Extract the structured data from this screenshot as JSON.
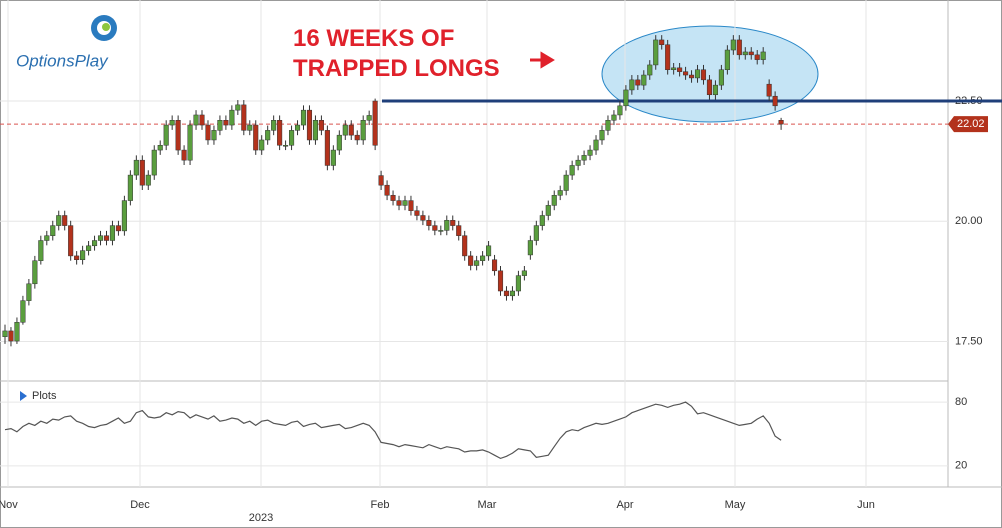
{
  "logo": "OptionsPlay",
  "chart_data": [
    {
      "type": "candlestick",
      "annotation": "16 WEEKS OF TRAPPED LONGS",
      "up_color": "#5a9e3e",
      "down_color": "#b3321c",
      "ylim": [
        16.7,
        24.6
      ],
      "yticks": [
        {
          "value": 17.5,
          "label": "17.50"
        },
        {
          "value": 20,
          "label": "20.00"
        },
        {
          "value": 22.5,
          "label": "22.50"
        }
      ],
      "grid": true,
      "resistance": 22.5,
      "last_price": 22.02,
      "xtick_labels": [
        "Nov",
        "Dec",
        "2023",
        "Feb",
        "Mar",
        "Apr",
        "May",
        "Jun"
      ],
      "values": [
        [
          17.6,
          17.85,
          17.45,
          17.72
        ],
        [
          17.72,
          17.8,
          17.4,
          17.51
        ],
        [
          17.51,
          18.0,
          17.45,
          17.9
        ],
        [
          17.9,
          18.45,
          17.85,
          18.35
        ],
        [
          18.35,
          18.8,
          18.25,
          18.7
        ],
        [
          18.7,
          19.28,
          18.6,
          19.18
        ],
        [
          19.18,
          19.7,
          19.1,
          19.6
        ],
        [
          19.6,
          19.8,
          19.5,
          19.7
        ],
        [
          19.7,
          20.01,
          19.6,
          19.91
        ],
        [
          19.91,
          20.22,
          19.81,
          20.12
        ],
        [
          20.12,
          20.22,
          19.81,
          19.91
        ],
        [
          19.91,
          20.01,
          19.18,
          19.28
        ],
        [
          19.28,
          19.38,
          19.1,
          19.2
        ],
        [
          19.2,
          19.49,
          19.1,
          19.39
        ],
        [
          19.39,
          19.59,
          19.29,
          19.49
        ],
        [
          19.49,
          19.7,
          19.39,
          19.6
        ],
        [
          19.6,
          19.8,
          19.5,
          19.7
        ],
        [
          19.7,
          19.8,
          19.5,
          19.6
        ],
        [
          19.6,
          20.01,
          19.5,
          19.91
        ],
        [
          19.91,
          20.01,
          19.7,
          19.8
        ],
        [
          19.8,
          20.53,
          19.7,
          20.43
        ],
        [
          20.43,
          21.06,
          20.33,
          20.96
        ],
        [
          20.96,
          21.37,
          20.86,
          21.27
        ],
        [
          21.27,
          21.37,
          20.65,
          20.75
        ],
        [
          20.75,
          21.06,
          20.65,
          20.96
        ],
        [
          20.96,
          21.58,
          20.86,
          21.48
        ],
        [
          21.48,
          21.68,
          21.38,
          21.58
        ],
        [
          21.58,
          22.1,
          21.48,
          22.0
        ],
        [
          22.0,
          22.2,
          21.9,
          22.1
        ],
        [
          22.1,
          22.2,
          21.38,
          21.48
        ],
        [
          21.48,
          21.58,
          21.17,
          21.27
        ],
        [
          21.27,
          22.1,
          21.17,
          22.0
        ],
        [
          22.0,
          22.31,
          21.9,
          22.21
        ],
        [
          22.21,
          22.31,
          21.9,
          22.0
        ],
        [
          22.0,
          22.1,
          21.59,
          21.69
        ],
        [
          21.69,
          21.99,
          21.59,
          21.89
        ],
        [
          21.89,
          22.2,
          21.79,
          22.1
        ],
        [
          22.1,
          22.2,
          21.9,
          22.0
        ],
        [
          22.0,
          22.41,
          21.9,
          22.31
        ],
        [
          22.31,
          22.52,
          22.21,
          22.42
        ],
        [
          22.42,
          22.52,
          21.79,
          21.89
        ],
        [
          21.89,
          22.1,
          21.79,
          22.0
        ],
        [
          22.0,
          22.1,
          21.38,
          21.48
        ],
        [
          21.48,
          21.79,
          21.38,
          21.69
        ],
        [
          21.69,
          21.99,
          21.59,
          21.89
        ],
        [
          21.89,
          22.2,
          21.79,
          22.1
        ],
        [
          22.1,
          22.2,
          21.48,
          21.58
        ],
        [
          21.58,
          21.68,
          21.48,
          21.58
        ],
        [
          21.58,
          21.99,
          21.48,
          21.89
        ],
        [
          21.89,
          22.1,
          21.79,
          22.0
        ],
        [
          22.0,
          22.41,
          21.9,
          22.31
        ],
        [
          22.31,
          22.41,
          21.59,
          21.69
        ],
        [
          21.69,
          22.2,
          21.59,
          22.1
        ],
        [
          22.1,
          22.2,
          21.79,
          21.89
        ],
        [
          21.89,
          21.99,
          21.06,
          21.16
        ],
        [
          21.16,
          21.58,
          21.06,
          21.48
        ],
        [
          21.48,
          21.89,
          21.38,
          21.79
        ],
        [
          21.79,
          22.1,
          21.69,
          22.0
        ],
        [
          22.0,
          22.1,
          21.69,
          21.79
        ],
        [
          21.79,
          21.89,
          21.59,
          21.69
        ],
        [
          21.69,
          22.2,
          21.59,
          22.1
        ],
        [
          22.1,
          22.3,
          22.0,
          22.2
        ],
        [
          22.5,
          22.55,
          21.48,
          21.58
        ],
        [
          20.95,
          21.05,
          20.65,
          20.75
        ],
        [
          20.75,
          20.85,
          20.44,
          20.54
        ],
        [
          20.54,
          20.64,
          20.33,
          20.43
        ],
        [
          20.43,
          20.53,
          20.23,
          20.33
        ],
        [
          20.33,
          20.53,
          20.23,
          20.43
        ],
        [
          20.43,
          20.53,
          20.12,
          20.22
        ],
        [
          20.22,
          20.32,
          20.02,
          20.12
        ],
        [
          20.12,
          20.22,
          19.92,
          20.02
        ],
        [
          20.02,
          20.12,
          19.81,
          19.91
        ],
        [
          19.91,
          20.01,
          19.71,
          19.81
        ],
        [
          19.81,
          19.91,
          19.71,
          19.81
        ],
        [
          19.81,
          20.12,
          19.71,
          20.02
        ],
        [
          20.02,
          20.12,
          19.81,
          19.91
        ],
        [
          19.91,
          20.01,
          19.6,
          19.7
        ],
        [
          19.7,
          19.8,
          19.18,
          19.28
        ],
        [
          19.28,
          19.38,
          18.98,
          19.08
        ],
        [
          19.08,
          19.28,
          18.98,
          19.18
        ],
        [
          19.18,
          19.38,
          19.08,
          19.28
        ],
        [
          19.28,
          19.59,
          19.18,
          19.49
        ],
        [
          19.2,
          19.3,
          18.87,
          18.97
        ],
        [
          18.97,
          19.07,
          18.45,
          18.55
        ],
        [
          18.55,
          18.65,
          18.35,
          18.45
        ],
        [
          18.45,
          18.65,
          18.35,
          18.55
        ],
        [
          18.55,
          18.97,
          18.45,
          18.87
        ],
        [
          18.87,
          19.07,
          18.77,
          18.97
        ],
        [
          19.3,
          19.7,
          19.2,
          19.6
        ],
        [
          19.6,
          20.01,
          19.5,
          19.91
        ],
        [
          19.91,
          20.22,
          19.81,
          20.12
        ],
        [
          20.12,
          20.43,
          20.02,
          20.33
        ],
        [
          20.33,
          20.64,
          20.23,
          20.54
        ],
        [
          20.54,
          20.74,
          20.44,
          20.64
        ],
        [
          20.64,
          21.06,
          20.54,
          20.96
        ],
        [
          20.96,
          21.26,
          20.86,
          21.16
        ],
        [
          21.16,
          21.37,
          21.06,
          21.27
        ],
        [
          21.27,
          21.47,
          21.17,
          21.37
        ],
        [
          21.37,
          21.58,
          21.27,
          21.48
        ],
        [
          21.48,
          21.79,
          21.38,
          21.69
        ],
        [
          21.69,
          21.99,
          21.59,
          21.89
        ],
        [
          21.89,
          22.2,
          21.79,
          22.1
        ],
        [
          22.1,
          22.31,
          22.0,
          22.21
        ],
        [
          22.21,
          22.5,
          22.11,
          22.4
        ],
        [
          22.4,
          22.83,
          22.3,
          22.73
        ],
        [
          22.73,
          23.04,
          22.63,
          22.94
        ],
        [
          22.94,
          23.04,
          22.73,
          22.83
        ],
        [
          22.83,
          23.14,
          22.73,
          23.04
        ],
        [
          23.04,
          23.35,
          22.94,
          23.25
        ],
        [
          23.25,
          23.87,
          23.15,
          23.77
        ],
        [
          23.77,
          23.87,
          23.57,
          23.67
        ],
        [
          23.67,
          23.77,
          23.05,
          23.15
        ],
        [
          23.15,
          23.29,
          23.05,
          23.19
        ],
        [
          23.19,
          23.29,
          23.01,
          23.11
        ],
        [
          23.11,
          23.21,
          22.94,
          23.04
        ],
        [
          23.04,
          23.14,
          22.88,
          22.98
        ],
        [
          22.98,
          23.25,
          22.88,
          23.15
        ],
        [
          23.15,
          23.25,
          22.84,
          22.94
        ],
        [
          22.94,
          23.04,
          22.53,
          22.63
        ],
        [
          22.63,
          22.93,
          22.53,
          22.83
        ],
        [
          22.83,
          23.25,
          22.73,
          23.15
        ],
        [
          23.15,
          23.66,
          23.05,
          23.56
        ],
        [
          23.56,
          23.87,
          23.46,
          23.77
        ],
        [
          23.77,
          23.87,
          23.36,
          23.46
        ],
        [
          23.46,
          23.62,
          23.36,
          23.52
        ],
        [
          23.52,
          23.62,
          23.36,
          23.46
        ],
        [
          23.46,
          23.56,
          23.26,
          23.36
        ],
        [
          23.36,
          23.62,
          23.26,
          23.52
        ],
        [
          22.85,
          22.95,
          22.5,
          22.6
        ],
        [
          22.6,
          22.7,
          22.3,
          22.4
        ],
        [
          22.1,
          22.15,
          21.9,
          22.02
        ]
      ]
    },
    {
      "type": "line",
      "title": "Plots",
      "color": "#555555",
      "ylim": [
        1,
        97
      ],
      "yticks": [
        20,
        80
      ],
      "values": [
        54,
        55,
        52,
        57,
        60,
        58,
        62,
        60,
        64,
        63,
        66,
        67,
        62,
        60,
        57,
        56,
        58,
        59,
        62,
        65,
        60,
        62,
        70,
        72,
        66,
        65,
        66,
        70,
        68,
        71,
        70,
        65,
        68,
        66,
        64,
        67,
        62,
        63,
        65,
        64,
        60,
        62,
        58,
        62,
        63,
        60,
        59,
        58,
        61,
        62,
        57,
        59,
        60,
        56,
        57,
        58,
        59,
        55,
        56,
        58,
        60,
        58,
        52,
        42,
        41,
        40,
        38,
        40,
        39,
        38,
        37,
        40,
        38,
        36,
        38,
        37,
        36,
        33,
        34,
        34,
        35,
        33,
        30,
        27,
        29,
        32,
        36,
        35,
        34,
        28,
        29,
        30,
        38,
        46,
        52,
        54,
        53,
        56,
        58,
        60,
        59,
        60,
        62,
        64,
        66,
        70,
        72,
        74,
        76,
        78,
        77,
        75,
        77,
        78,
        80,
        76,
        69,
        70,
        68,
        66,
        64,
        62,
        60,
        58,
        59,
        60,
        64,
        67,
        60,
        48,
        44
      ]
    }
  ]
}
